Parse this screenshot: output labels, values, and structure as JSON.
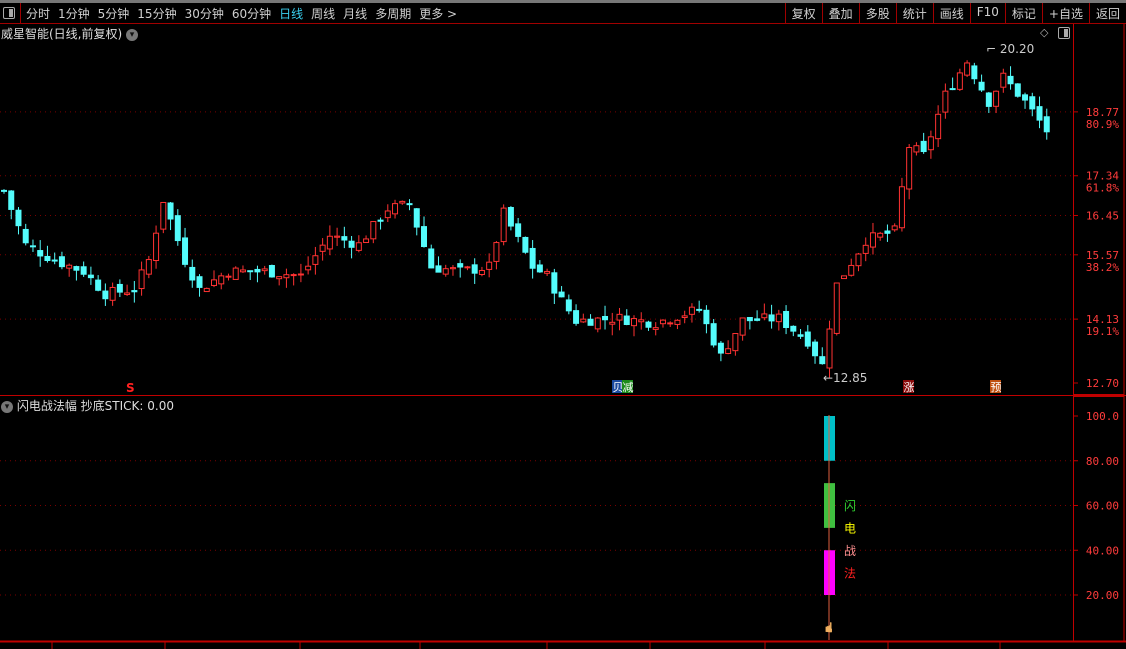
{
  "toolbar": {
    "periods": [
      "分时",
      "1分钟",
      "5分钟",
      "15分钟",
      "30分钟",
      "60分钟",
      "日线",
      "周线",
      "月线",
      "多周期",
      "更多 >"
    ],
    "active_period": "日线",
    "right_buttons": [
      "复权",
      "叠加",
      "多股",
      "统计",
      "画线",
      "F10",
      "标记",
      "+自选",
      "返回"
    ]
  },
  "main": {
    "title": "威星智能(日线,前复权)",
    "price_labels": [
      "18.77",
      "17.34",
      "16.45",
      "15.57",
      "14.13",
      "12.70"
    ],
    "pct_labels": [
      "80.9%",
      "61.8%",
      "38.2%",
      "19.1%"
    ],
    "high_label": "20.20",
    "low_label": "12.85",
    "markers": [
      {
        "text": "S",
        "color": "#ff2020"
      },
      {
        "text": "贝",
        "bg": "#1a4aa0"
      },
      {
        "text": "减",
        "bg": "#1a8a1a"
      },
      {
        "text": "涨",
        "bg": "#8a0a0a"
      },
      {
        "text": "预",
        "bg": "#c05010"
      }
    ]
  },
  "indicator": {
    "name": "闪电战法幅",
    "value_label": "抄底STICK: 0.00",
    "axis_labels": [
      "100.0",
      "80.00",
      "60.00",
      "40.00",
      "20.00"
    ],
    "side_chars": [
      {
        "t": "闪",
        "c": "#30d030"
      },
      {
        "t": "电",
        "c": "#ffff00"
      },
      {
        "t": "战",
        "c": "#ff9090"
      },
      {
        "t": "法",
        "c": "#ff2020"
      }
    ],
    "bars": [
      {
        "from": 80,
        "to": 100,
        "color": "#00c0c8"
      },
      {
        "from": 50,
        "to": 70,
        "color": "#40c040"
      },
      {
        "from": 20,
        "to": 40,
        "color": "#ff00ff"
      }
    ]
  },
  "chart_data": {
    "type": "candlestick",
    "ylim": [
      12.7,
      20.2
    ],
    "colors": {
      "up": "#ff3232",
      "down": "#54fcfc"
    },
    "grid": true,
    "close_path": [
      [
        0,
        17.0
      ],
      [
        3,
        15.8
      ],
      [
        7,
        15.45
      ],
      [
        11,
        15.2
      ],
      [
        14,
        14.7
      ],
      [
        18,
        14.8
      ],
      [
        20,
        15.45
      ],
      [
        22,
        16.8
      ],
      [
        25,
        15.45
      ],
      [
        27,
        14.8
      ],
      [
        31,
        15.2
      ],
      [
        36,
        15.2
      ],
      [
        41,
        15.1
      ],
      [
        45,
        16.0
      ],
      [
        49,
        15.8
      ],
      [
        53,
        16.6
      ],
      [
        56,
        16.7
      ],
      [
        59,
        15.3
      ],
      [
        63,
        15.2
      ],
      [
        67,
        15.3
      ],
      [
        69,
        16.5
      ],
      [
        73,
        15.3
      ],
      [
        75,
        15.1
      ],
      [
        77,
        14.55
      ],
      [
        79,
        14.1
      ],
      [
        85,
        14.15
      ],
      [
        90,
        14.05
      ],
      [
        96,
        14.35
      ],
      [
        99,
        13.3
      ],
      [
        102,
        14.1
      ],
      [
        107,
        14.15
      ],
      [
        111,
        13.65
      ],
      [
        113,
        13.1
      ],
      [
        115,
        14.9
      ],
      [
        119,
        15.9
      ],
      [
        123,
        16.1
      ],
      [
        125,
        18.0
      ],
      [
        127,
        17.8
      ],
      [
        130,
        19.15
      ],
      [
        133,
        19.9
      ],
      [
        136,
        19.0
      ],
      [
        138,
        19.55
      ],
      [
        141,
        19.0
      ],
      [
        144,
        18.35
      ]
    ]
  }
}
